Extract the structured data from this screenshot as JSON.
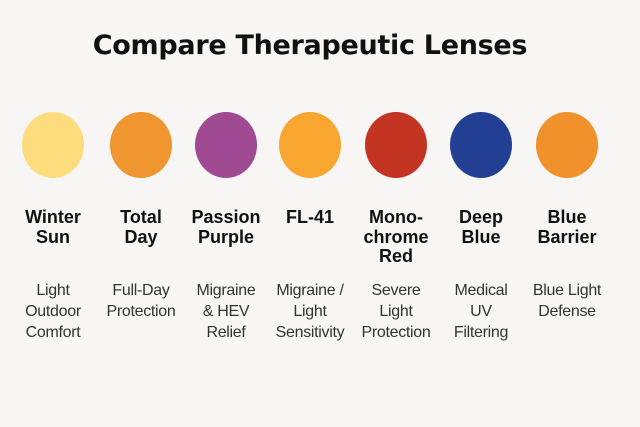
{
  "title": "Compare Therapeutic Lenses",
  "lenses": [
    {
      "name_lines": [
        "Winter",
        "Sun"
      ],
      "desc_lines": [
        "Light",
        "Outdoor",
        "Comfort"
      ],
      "color": "#fcdc7c"
    },
    {
      "name_lines": [
        "Total",
        "Day"
      ],
      "desc_lines": [
        "Full-Day",
        "Protection",
        ""
      ],
      "color": "#ef9630"
    },
    {
      "name_lines": [
        "Passion",
        "Purple"
      ],
      "desc_lines": [
        "Migraine",
        "& HEV",
        "Relief"
      ],
      "color": "#a04a93"
    },
    {
      "name_lines": [
        "FL-41",
        ""
      ],
      "desc_lines": [
        "Migraine /",
        "Light",
        "Sensitivity"
      ],
      "color": "#f8a630"
    },
    {
      "name_lines": [
        "Mono-",
        "chrome",
        "Red"
      ],
      "desc_lines": [
        "Severe",
        "Light",
        "Protection"
      ],
      "color": "#c33422"
    },
    {
      "name_lines": [
        "Deep",
        "Blue"
      ],
      "desc_lines": [
        "Medical",
        "UV",
        "Filtering"
      ],
      "color": "#233f93"
    },
    {
      "name_lines": [
        "Blue",
        "Barrier"
      ],
      "desc_lines": [
        "Blue Light",
        "Defense",
        ""
      ],
      "color": "#f0912c"
    }
  ]
}
